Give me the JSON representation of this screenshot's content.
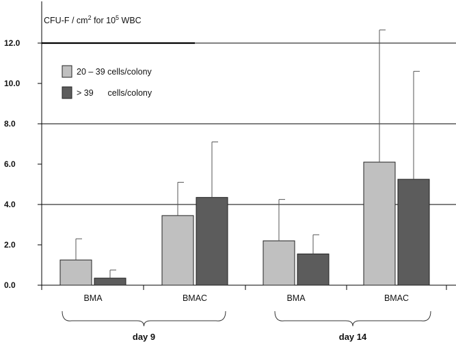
{
  "chart_data": {
    "type": "bar",
    "ylabel_prefix": "CFU-F / cm",
    "ylabel_exp": "2",
    "ylabel_mid": " for 10",
    "ylabel_exp2": "5",
    "ylabel_suffix": " WBC",
    "ylim": [
      0,
      14
    ],
    "y_ticks": [
      "0.0",
      "2.0",
      "4.0",
      "6.0",
      "8.0",
      "10.0",
      "12.0"
    ],
    "gridlines": [
      4,
      8,
      12
    ],
    "categories": [
      "BMA",
      "BMAC",
      "BMA",
      "BMAC"
    ],
    "groups": [
      {
        "label": "day 9",
        "categories": [
          0,
          1
        ]
      },
      {
        "label": "day 14",
        "categories": [
          2,
          3
        ]
      }
    ],
    "series": [
      {
        "name": "20 – 39 cells/colony",
        "color": "#c0c0c0",
        "values": [
          1.25,
          3.45,
          2.2,
          6.1
        ],
        "error_upper": [
          2.3,
          5.1,
          4.25,
          12.65
        ]
      },
      {
        "name": "> 39      cells/colony",
        "color": "#5c5c5c",
        "values": [
          0.35,
          4.35,
          1.55,
          5.25
        ],
        "error_upper": [
          0.75,
          7.1,
          2.5,
          10.6
        ]
      }
    ],
    "legend_position": "top-left",
    "grid": true
  }
}
